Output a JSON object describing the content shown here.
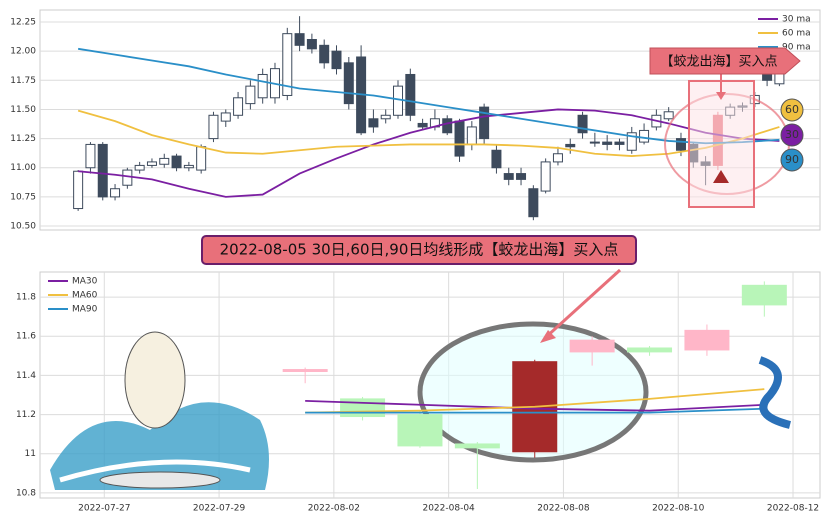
{
  "chart_data": [
    {
      "type": "candlestick",
      "ylim": [
        10.466,
        12.353
      ],
      "yticks": [
        {
          "value": 10.5,
          "label": "10.50"
        },
        {
          "value": 10.75,
          "label": "10.75"
        },
        {
          "value": 11.0,
          "label": "11.00"
        },
        {
          "value": 11.25,
          "label": "11.25"
        },
        {
          "value": 11.5,
          "label": "11.50"
        },
        {
          "value": 11.75,
          "label": "11.75"
        },
        {
          "value": 12.0,
          "label": "12.00"
        },
        {
          "value": 12.25,
          "label": "12.25"
        }
      ],
      "xlim": [
        -3.1,
        60.3
      ],
      "grid": true,
      "legend": "upper right",
      "up_color": "#ffffff",
      "down_color": "#3d4a5c",
      "edge_color": "#3d4a5c",
      "highlight": {
        "index": 52,
        "color": "#e8707a"
      },
      "candles": {
        "open": [
          10.65,
          11.0,
          11.2,
          10.75,
          10.85,
          10.98,
          11.02,
          11.03,
          11.1,
          11.0,
          10.98,
          11.25,
          11.4,
          11.45,
          11.55,
          11.6,
          11.6,
          11.62,
          12.15,
          12.1,
          12.05,
          12.0,
          11.9,
          11.95,
          11.42,
          11.42,
          11.45,
          11.8,
          11.38,
          11.35,
          11.42,
          11.4,
          11.2,
          11.52,
          11.15,
          10.95,
          10.95,
          10.82,
          10.8,
          11.05,
          11.2,
          11.45,
          11.22,
          11.22,
          11.22,
          11.15,
          11.22,
          11.35,
          11.42,
          11.25,
          11.2,
          11.05,
          11.02,
          11.45,
          11.52,
          11.55,
          11.82,
          11.72
        ],
        "high": [
          10.98,
          11.22,
          11.22,
          10.86,
          11.0,
          11.05,
          11.08,
          11.12,
          11.12,
          11.05,
          11.2,
          11.48,
          11.5,
          11.65,
          11.75,
          11.85,
          11.9,
          12.2,
          12.3,
          12.15,
          12.1,
          12.05,
          11.95,
          12.05,
          11.5,
          11.5,
          11.75,
          11.85,
          11.42,
          11.5,
          11.45,
          11.42,
          11.4,
          11.55,
          11.2,
          11.0,
          11.0,
          10.85,
          11.08,
          11.18,
          11.25,
          11.48,
          11.3,
          11.28,
          11.25,
          11.35,
          11.38,
          11.5,
          11.52,
          11.3,
          11.22,
          11.1,
          11.48,
          11.55,
          11.56,
          11.65,
          11.86,
          11.88
        ],
        "low": [
          10.63,
          10.95,
          10.72,
          10.72,
          10.82,
          10.95,
          11.0,
          11.0,
          10.97,
          10.97,
          10.95,
          11.22,
          11.35,
          11.42,
          11.5,
          11.55,
          11.55,
          11.58,
          12.0,
          11.98,
          11.85,
          11.8,
          11.5,
          11.28,
          11.3,
          11.38,
          11.42,
          11.4,
          11.32,
          11.32,
          11.28,
          11.05,
          11.15,
          11.2,
          10.95,
          10.85,
          10.85,
          10.55,
          10.78,
          11.02,
          11.12,
          11.25,
          11.18,
          11.15,
          11.15,
          11.12,
          11.2,
          11.32,
          11.4,
          11.1,
          11.0,
          10.85,
          10.98,
          11.42,
          11.48,
          11.52,
          11.7,
          11.7
        ],
        "close": [
          10.97,
          11.2,
          10.75,
          10.82,
          10.98,
          11.02,
          11.05,
          11.08,
          11.0,
          11.02,
          11.18,
          11.45,
          11.47,
          11.6,
          11.7,
          11.8,
          11.85,
          12.15,
          12.05,
          12.02,
          11.9,
          11.85,
          11.55,
          11.3,
          11.35,
          11.45,
          11.7,
          11.45,
          11.35,
          11.42,
          11.3,
          11.1,
          11.35,
          11.25,
          11.0,
          10.9,
          10.9,
          10.58,
          11.05,
          11.12,
          11.18,
          11.3,
          11.22,
          11.2,
          11.2,
          11.3,
          11.32,
          11.45,
          11.48,
          11.15,
          11.05,
          11.02,
          11.45,
          11.52,
          11.53,
          11.62,
          11.75,
          11.82
        ]
      },
      "series": [
        {
          "name": "30 ma",
          "color": "#7b1fa2",
          "x": [
            0,
            3,
            6,
            9,
            12,
            15,
            18,
            21,
            24,
            27,
            30,
            33,
            36,
            39,
            42,
            45,
            48,
            51,
            54,
            57
          ],
          "values": [
            10.97,
            10.94,
            10.9,
            10.82,
            10.75,
            10.77,
            10.95,
            11.08,
            11.2,
            11.3,
            11.38,
            11.44,
            11.47,
            11.5,
            11.49,
            11.45,
            11.38,
            11.3,
            11.25,
            11.23
          ]
        },
        {
          "name": "60 ma",
          "color": "#f0c040",
          "x": [
            0,
            3,
            6,
            9,
            12,
            15,
            18,
            21,
            24,
            27,
            30,
            33,
            36,
            39,
            42,
            45,
            48,
            51,
            54,
            57
          ],
          "values": [
            11.49,
            11.4,
            11.28,
            11.2,
            11.13,
            11.12,
            11.15,
            11.18,
            11.19,
            11.2,
            11.2,
            11.2,
            11.19,
            11.17,
            11.12,
            11.1,
            11.12,
            11.17,
            11.25,
            11.35
          ]
        },
        {
          "name": "90 ma",
          "color": "#2a8fc8",
          "x": [
            0,
            3,
            6,
            9,
            12,
            15,
            18,
            21,
            24,
            27,
            30,
            33,
            36,
            39,
            42,
            45,
            48,
            51,
            54,
            57
          ],
          "values": [
            12.02,
            11.97,
            11.92,
            11.87,
            11.8,
            11.74,
            11.68,
            11.65,
            11.62,
            11.57,
            11.52,
            11.47,
            11.42,
            11.37,
            11.32,
            11.27,
            11.23,
            11.21,
            11.22,
            11.24
          ]
        }
      ],
      "annotations": {
        "label": "【蛟龙出海】买入点",
        "badges": [
          {
            "text": "60",
            "color": "#f0c040"
          },
          {
            "text": "30",
            "color": "#7b1fa2"
          },
          {
            "text": "90",
            "color": "#2a8fc8"
          }
        ]
      }
    },
    {
      "type": "candlestick",
      "title": "2022-08-05 30日,60日,90日均线形成【蛟龙出海】买入点",
      "ylim": [
        10.774,
        11.928
      ],
      "yticks": [
        10.8,
        11.0,
        11.2,
        11.4,
        11.6,
        11.8
      ],
      "xlim": [
        -1.12,
        12.47
      ],
      "xticks": [
        {
          "value": 0,
          "label": "2022-07-27"
        },
        {
          "value": 2,
          "label": "2022-07-29"
        },
        {
          "value": 4,
          "label": "2022-08-02"
        },
        {
          "value": 6,
          "label": "2022-08-04"
        },
        {
          "value": 8,
          "label": "2022-08-08"
        },
        {
          "value": 10,
          "label": "2022-08-10"
        },
        {
          "value": 12,
          "label": "2022-08-12"
        }
      ],
      "grid": true,
      "legend": "upper left",
      "x": [
        3.5,
        4.5,
        5.5,
        6.5,
        7.5,
        8.5,
        9.5,
        10.5,
        11.5
      ],
      "colors": [
        "#ffb6c8",
        "#b8f5b8",
        "#b8f5b8",
        "#b8f5b8",
        "#a52a2a",
        "#ffb6c8",
        "#b8f5b8",
        "#ffb6c8",
        "#b8f5b8"
      ],
      "candles": {
        "open": [
          11.42,
          11.28,
          11.2,
          11.05,
          11.01,
          11.52,
          11.54,
          11.53,
          11.86
        ],
        "high": [
          11.44,
          11.29,
          11.22,
          11.06,
          11.48,
          11.6,
          11.55,
          11.66,
          11.88
        ],
        "low": [
          11.36,
          11.17,
          11.03,
          10.82,
          10.98,
          11.45,
          11.5,
          11.5,
          11.7
        ],
        "close": [
          11.43,
          11.19,
          11.04,
          11.03,
          11.47,
          11.58,
          11.52,
          11.63,
          11.76
        ]
      },
      "series": [
        {
          "name": "MA30",
          "color": "#7b1fa2",
          "x": [
            3.5,
            5.5,
            7.5,
            9.5,
            11.5
          ],
          "values": [
            11.27,
            11.25,
            11.23,
            11.22,
            11.25
          ]
        },
        {
          "name": "MA60",
          "color": "#f0c040",
          "x": [
            3.5,
            5.5,
            7.5,
            9.5,
            11.5
          ],
          "values": [
            11.21,
            11.22,
            11.24,
            11.28,
            11.33
          ]
        },
        {
          "name": "MA90",
          "color": "#2a8fc8",
          "x": [
            3.5,
            5.5,
            7.5,
            9.5,
            11.5
          ],
          "values": [
            11.21,
            11.21,
            11.21,
            11.21,
            11.23
          ]
        }
      ]
    }
  ]
}
